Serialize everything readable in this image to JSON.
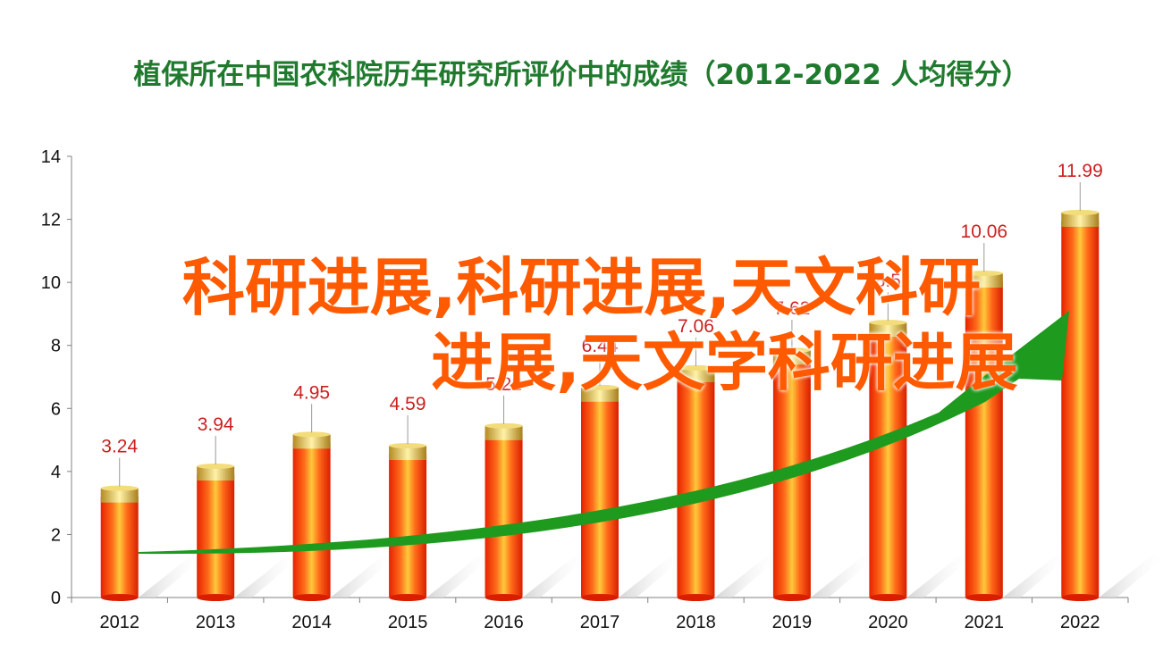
{
  "chart_data": {
    "type": "bar",
    "title": "植保所在中国农科院历年研究所评价中的成绩（2012-2022  人均得分）",
    "categories": [
      "2012",
      "2013",
      "2014",
      "2015",
      "2016",
      "2017",
      "2018",
      "2019",
      "2020",
      "2021",
      "2022"
    ],
    "values": [
      3.24,
      3.94,
      4.95,
      4.59,
      5.22,
      6.44,
      7.06,
      7.62,
      8.5,
      10.06,
      11.99
    ],
    "data_labels": [
      "3.24",
      "3.94",
      "4.95",
      "4.59",
      "5.22",
      "6.44",
      "7.06",
      "7.62",
      "8.5",
      "10.06",
      "11.99"
    ],
    "ylim": [
      0,
      14
    ],
    "yticks": [
      0,
      2,
      4,
      6,
      8,
      10,
      12,
      14
    ],
    "xlabel": "",
    "ylabel": "",
    "grid": false,
    "trend_arrow": true,
    "colors": {
      "bar": "#ff3300",
      "bar_highlight": "#ffcc33",
      "label": "#cc1f1f",
      "title": "#1f7a2e",
      "arrow": "#1e9a1e"
    }
  },
  "watermark": {
    "line1": "科研进展,科研进展,天文科研",
    "line2": "进展,天文学科研进展"
  }
}
